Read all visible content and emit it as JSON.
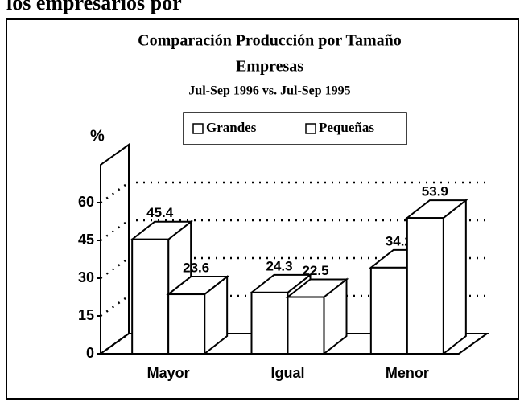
{
  "caption": "los empresarios por",
  "chart_data": {
    "type": "bar3d",
    "title": "Comparación Producción  por Tamaño",
    "title_line2": "Empresas",
    "subtitle": "Jul-Sep 1996 vs. Jul-Sep 1995",
    "y_label": "%",
    "categories": [
      "Mayor",
      "Igual",
      "Menor"
    ],
    "series": [
      {
        "name": "Grandes",
        "color": "#ffffff",
        "values": [
          45.4,
          24.3,
          34.2
        ]
      },
      {
        "name": "Pequeñas",
        "color": "#ffffff",
        "values": [
          23.6,
          22.5,
          53.9
        ]
      }
    ],
    "ylim": [
      0,
      75
    ],
    "yticks": [
      0,
      15,
      30,
      45,
      60
    ],
    "grid": true
  }
}
